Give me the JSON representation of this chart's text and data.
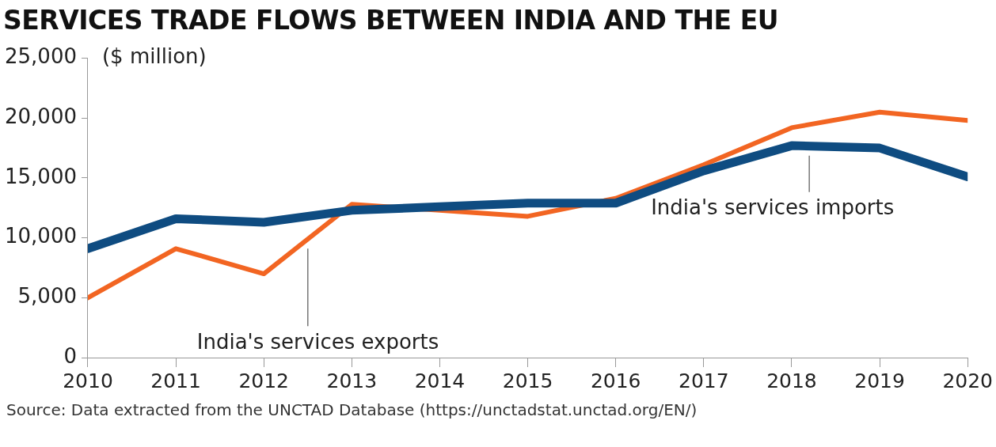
{
  "chart_data": {
    "type": "line",
    "title": "SERVICES TRADE FLOWS BETWEEN INDIA AND THE EU",
    "ylabel": "($ million)",
    "x": [
      2010,
      2011,
      2012,
      2013,
      2014,
      2015,
      2016,
      2017,
      2018,
      2019,
      2020
    ],
    "series": [
      {
        "name": "India's services imports",
        "color": "#0f4c81",
        "values": [
          9100,
          11600,
          11300,
          12300,
          12600,
          12900,
          12900,
          15600,
          17700,
          17500,
          15100
        ]
      },
      {
        "name": "India's services exports",
        "color": "#f26522",
        "values": [
          5000,
          9100,
          7000,
          12800,
          12300,
          11800,
          13300,
          16100,
          19200,
          20500,
          19800
        ]
      }
    ],
    "xlim": [
      2010,
      2020
    ],
    "xticks": [
      2010,
      2011,
      2012,
      2013,
      2014,
      2015,
      2016,
      2017,
      2018,
      2019,
      2020
    ],
    "ylim": [
      0,
      25000
    ],
    "yticks": [
      0,
      {
        "value": 5000,
        "label": "5,000"
      },
      {
        "value": 10000,
        "label": "10,000"
      },
      {
        "value": 15000,
        "label": "15,000"
      },
      {
        "value": 20000,
        "label": "20,000"
      },
      {
        "value": 25000,
        "label": "25,000"
      }
    ],
    "grid": false,
    "legend": false,
    "marker": "none",
    "line_style": "solid",
    "annotations": [
      "Source: Data extracted from the UNCTAD Database (https://unctadstat.unctad.org/EN/)"
    ]
  }
}
